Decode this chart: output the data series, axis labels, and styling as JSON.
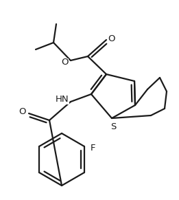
{
  "bg_color": "#ffffff",
  "line_color": "#1a1a1a",
  "line_width": 1.6,
  "fig_width": 2.61,
  "fig_height": 2.91,
  "dpi": 100,
  "atoms": {
    "S": "S",
    "O": "O",
    "NH": "HN",
    "F": "F"
  }
}
